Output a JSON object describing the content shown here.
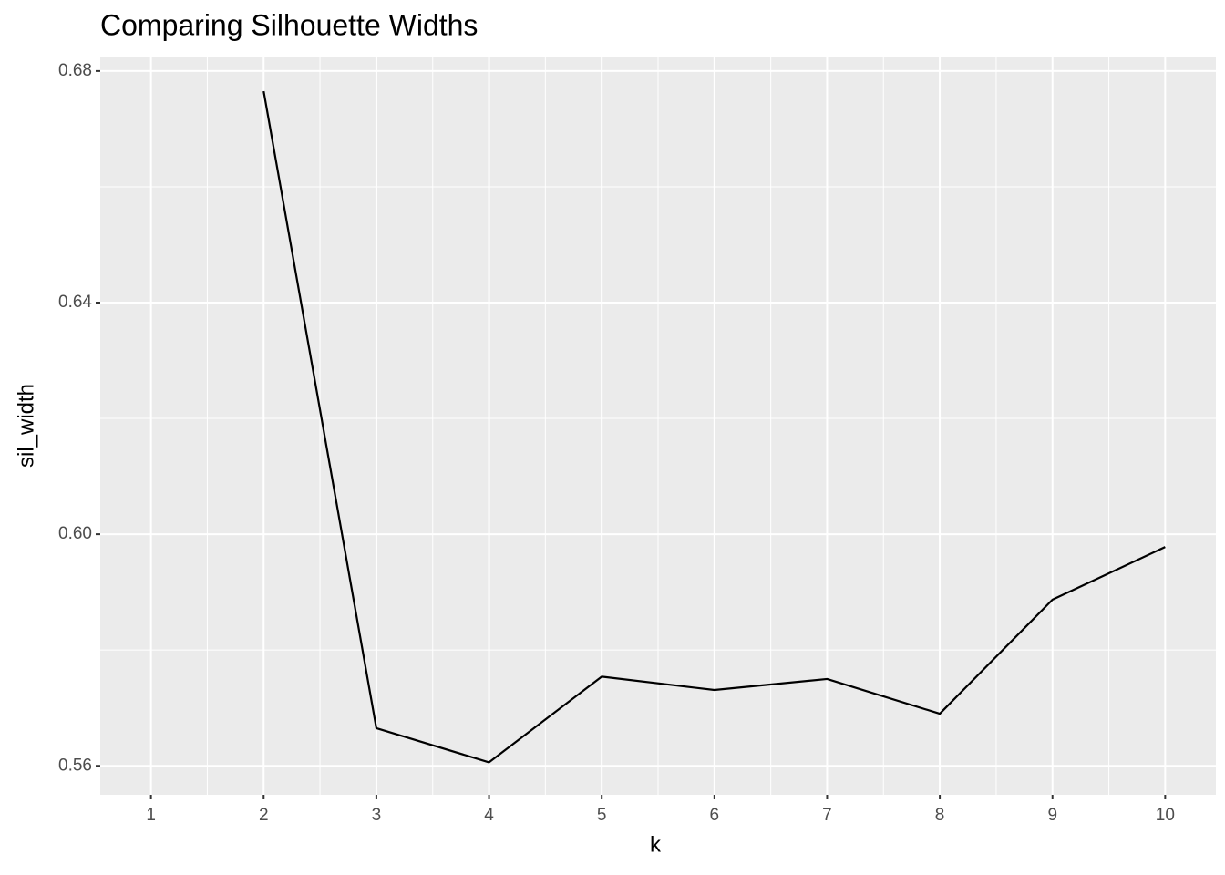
{
  "chart_data": {
    "type": "line",
    "title": "Comparing Silhouette Widths",
    "x_label": "k",
    "y_label": "sil_width",
    "x": [
      1,
      2,
      3,
      4,
      5,
      6,
      7,
      8,
      9,
      10
    ],
    "series": [
      {
        "name": "sil_width",
        "color": "#000000",
        "values": [
          null,
          0.6765,
          0.5665,
          0.5606,
          0.5754,
          0.5731,
          0.575,
          0.569,
          0.5887,
          0.5978
        ]
      }
    ],
    "xlim": [
      0.55,
      10.45
    ],
    "xticks": [
      1,
      2,
      3,
      4,
      5,
      6,
      7,
      8,
      9,
      10
    ],
    "ylim": [
      0.555,
      0.6825
    ],
    "yticks": [
      {
        "value": 0.56,
        "label": "0.56"
      },
      {
        "value": 0.6,
        "label": "0.60"
      },
      {
        "value": 0.64,
        "label": "0.64"
      },
      {
        "value": 0.68,
        "label": "0.68"
      }
    ],
    "grid": true
  }
}
